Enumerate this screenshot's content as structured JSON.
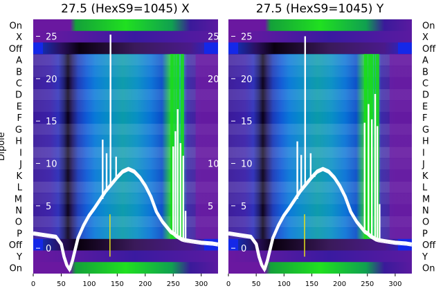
{
  "chart_data": [
    {
      "type": "heatmap",
      "title": "27.5 (HexS9=1045) X",
      "ylabel": "Dipole",
      "categories": [
        "On",
        "X",
        "Off",
        "A",
        "B",
        "C",
        "D",
        "E",
        "F",
        "G",
        "H",
        "I",
        "J",
        "K",
        "L",
        "M",
        "N",
        "O",
        "P",
        "Off",
        "Y",
        "On"
      ],
      "x_ticks": [
        0,
        50,
        100,
        150,
        200,
        250,
        300
      ],
      "xlim": [
        0,
        330
      ],
      "overlay_ticks": [
        0,
        5,
        10,
        15,
        20,
        25
      ],
      "overlay_ylim": [
        -3,
        27
      ],
      "heat_columns": [
        {
          "x": 0,
          "color": "#3a1a9a"
        },
        {
          "x": 30,
          "color": "#3a20a8"
        },
        {
          "x": 45,
          "color": "#2b2db8"
        },
        {
          "x": 55,
          "color": "#1a1a6e"
        },
        {
          "x": 62,
          "color": "#0a0018"
        },
        {
          "x": 70,
          "color": "#201a6a"
        },
        {
          "x": 80,
          "color": "#1a3ab8"
        },
        {
          "x": 95,
          "color": "#0f5ad6"
        },
        {
          "x": 110,
          "color": "#0878d8"
        },
        {
          "x": 130,
          "color": "#068ac8"
        },
        {
          "x": 160,
          "color": "#0a9aaa"
        },
        {
          "x": 185,
          "color": "#0890c4"
        },
        {
          "x": 210,
          "color": "#0872d6"
        },
        {
          "x": 230,
          "color": "#0a4ec8"
        },
        {
          "x": 245,
          "color": "#22c83a"
        },
        {
          "x": 262,
          "color": "#1aa8b8"
        },
        {
          "x": 275,
          "color": "#3a2aa8"
        },
        {
          "x": 300,
          "color": "#4a1c9a"
        },
        {
          "x": 330,
          "color": "#4a1c9a"
        }
      ],
      "green_streaks": [
        245,
        248,
        252,
        256,
        258,
        263,
        266
      ],
      "magenta_band": [
        290,
        330
      ],
      "line": {
        "name": "",
        "x": [
          0,
          20,
          40,
          50,
          55,
          60,
          65,
          70,
          80,
          90,
          100,
          110,
          120,
          130,
          140,
          150,
          160,
          170,
          180,
          190,
          200,
          210,
          220,
          230,
          240,
          245,
          250,
          255,
          260,
          265,
          270,
          280,
          300,
          320,
          330
        ],
        "y": [
          1.8,
          1.6,
          1.4,
          0.5,
          -1,
          -2,
          -2.5,
          -1.5,
          1.2,
          2.7,
          3.9,
          4.8,
          5.8,
          6.8,
          7.6,
          8.4,
          9.1,
          9.4,
          9.1,
          8.4,
          7.4,
          6.1,
          4.3,
          3.2,
          2.4,
          2.0,
          1.8,
          1.5,
          1.3,
          1.1,
          1.0,
          0.9,
          0.7,
          0.6,
          0.5
        ]
      },
      "spikes": [
        {
          "x": 124,
          "y": 12.8
        },
        {
          "x": 131,
          "y": 11.2
        },
        {
          "x": 138,
          "y": 25.2
        },
        {
          "x": 148,
          "y": 10.8
        },
        {
          "x": 155,
          "y": 8.4
        },
        {
          "x": 250,
          "y": 12.0
        },
        {
          "x": 254,
          "y": 13.8
        },
        {
          "x": 258,
          "y": 16.4
        },
        {
          "x": 263,
          "y": 12.4
        },
        {
          "x": 268,
          "y": 10.9
        },
        {
          "x": 272,
          "y": 4.4
        }
      ]
    },
    {
      "type": "heatmap",
      "title": "27.5 (HexS9=1045) Y",
      "ylabel": "",
      "categories": [
        "On",
        "X",
        "Off",
        "A",
        "B",
        "C",
        "D",
        "E",
        "F",
        "G",
        "H",
        "I",
        "J",
        "K",
        "L",
        "M",
        "N",
        "O",
        "P",
        "Off",
        "Y",
        "On"
      ],
      "x_ticks": [
        0,
        50,
        100,
        150,
        200,
        250,
        300
      ],
      "xlim": [
        0,
        330
      ],
      "overlay_ticks": [
        0,
        5,
        10,
        15,
        20,
        25
      ],
      "overlay_ylim": [
        -3,
        27
      ],
      "heat_columns": [
        {
          "x": 0,
          "color": "#3a1a9a"
        },
        {
          "x": 30,
          "color": "#3a20a8"
        },
        {
          "x": 45,
          "color": "#2b2db8"
        },
        {
          "x": 55,
          "color": "#1a1a6e"
        },
        {
          "x": 62,
          "color": "#0a0018"
        },
        {
          "x": 70,
          "color": "#201a6a"
        },
        {
          "x": 80,
          "color": "#1a3ab8"
        },
        {
          "x": 95,
          "color": "#0f5ad6"
        },
        {
          "x": 110,
          "color": "#0878d8"
        },
        {
          "x": 130,
          "color": "#068ac8"
        },
        {
          "x": 160,
          "color": "#0a9aaa"
        },
        {
          "x": 185,
          "color": "#0890c4"
        },
        {
          "x": 210,
          "color": "#0872d6"
        },
        {
          "x": 230,
          "color": "#0a4ec8"
        },
        {
          "x": 245,
          "color": "#22c83a"
        },
        {
          "x": 262,
          "color": "#1aa8b8"
        },
        {
          "x": 275,
          "color": "#3a2aa8"
        },
        {
          "x": 300,
          "color": "#4a1c9a"
        },
        {
          "x": 330,
          "color": "#4a1c9a"
        }
      ],
      "green_streaks": [
        244,
        247,
        251,
        254,
        257,
        261,
        265,
        268
      ],
      "magenta_band": [
        290,
        330
      ],
      "line": {
        "name": "",
        "x": [
          0,
          20,
          40,
          50,
          55,
          60,
          65,
          70,
          80,
          90,
          100,
          110,
          120,
          130,
          140,
          150,
          160,
          170,
          180,
          190,
          200,
          210,
          220,
          230,
          240,
          245,
          250,
          255,
          260,
          265,
          270,
          280,
          300,
          320,
          330
        ],
        "y": [
          1.8,
          1.6,
          1.4,
          0.5,
          -1,
          -2,
          -2.5,
          -1.5,
          1.2,
          2.7,
          3.9,
          4.8,
          5.8,
          6.8,
          7.6,
          8.4,
          9.1,
          9.4,
          9.1,
          8.4,
          7.4,
          6.1,
          4.3,
          3.2,
          2.4,
          2.0,
          1.8,
          1.5,
          1.3,
          1.1,
          1.0,
          0.9,
          0.7,
          0.6,
          0.5
        ]
      },
      "spikes": [
        {
          "x": 124,
          "y": 12.6
        },
        {
          "x": 131,
          "y": 11.0
        },
        {
          "x": 138,
          "y": 25.0
        },
        {
          "x": 148,
          "y": 11.2
        },
        {
          "x": 155,
          "y": 8.6
        },
        {
          "x": 245,
          "y": 14.8
        },
        {
          "x": 252,
          "y": 17.0
        },
        {
          "x": 258,
          "y": 15.2
        },
        {
          "x": 264,
          "y": 18.2
        },
        {
          "x": 268,
          "y": 14.4
        },
        {
          "x": 272,
          "y": 5.2
        }
      ]
    }
  ],
  "colors": {
    "on_band": "#1ec81e",
    "on_band_edge": "#0a6a2a",
    "off_band": "#1a0a2a",
    "xy_band": "#2a2ab8",
    "edge_blue": "#1428e8",
    "overlay_line": "#ffffff"
  }
}
